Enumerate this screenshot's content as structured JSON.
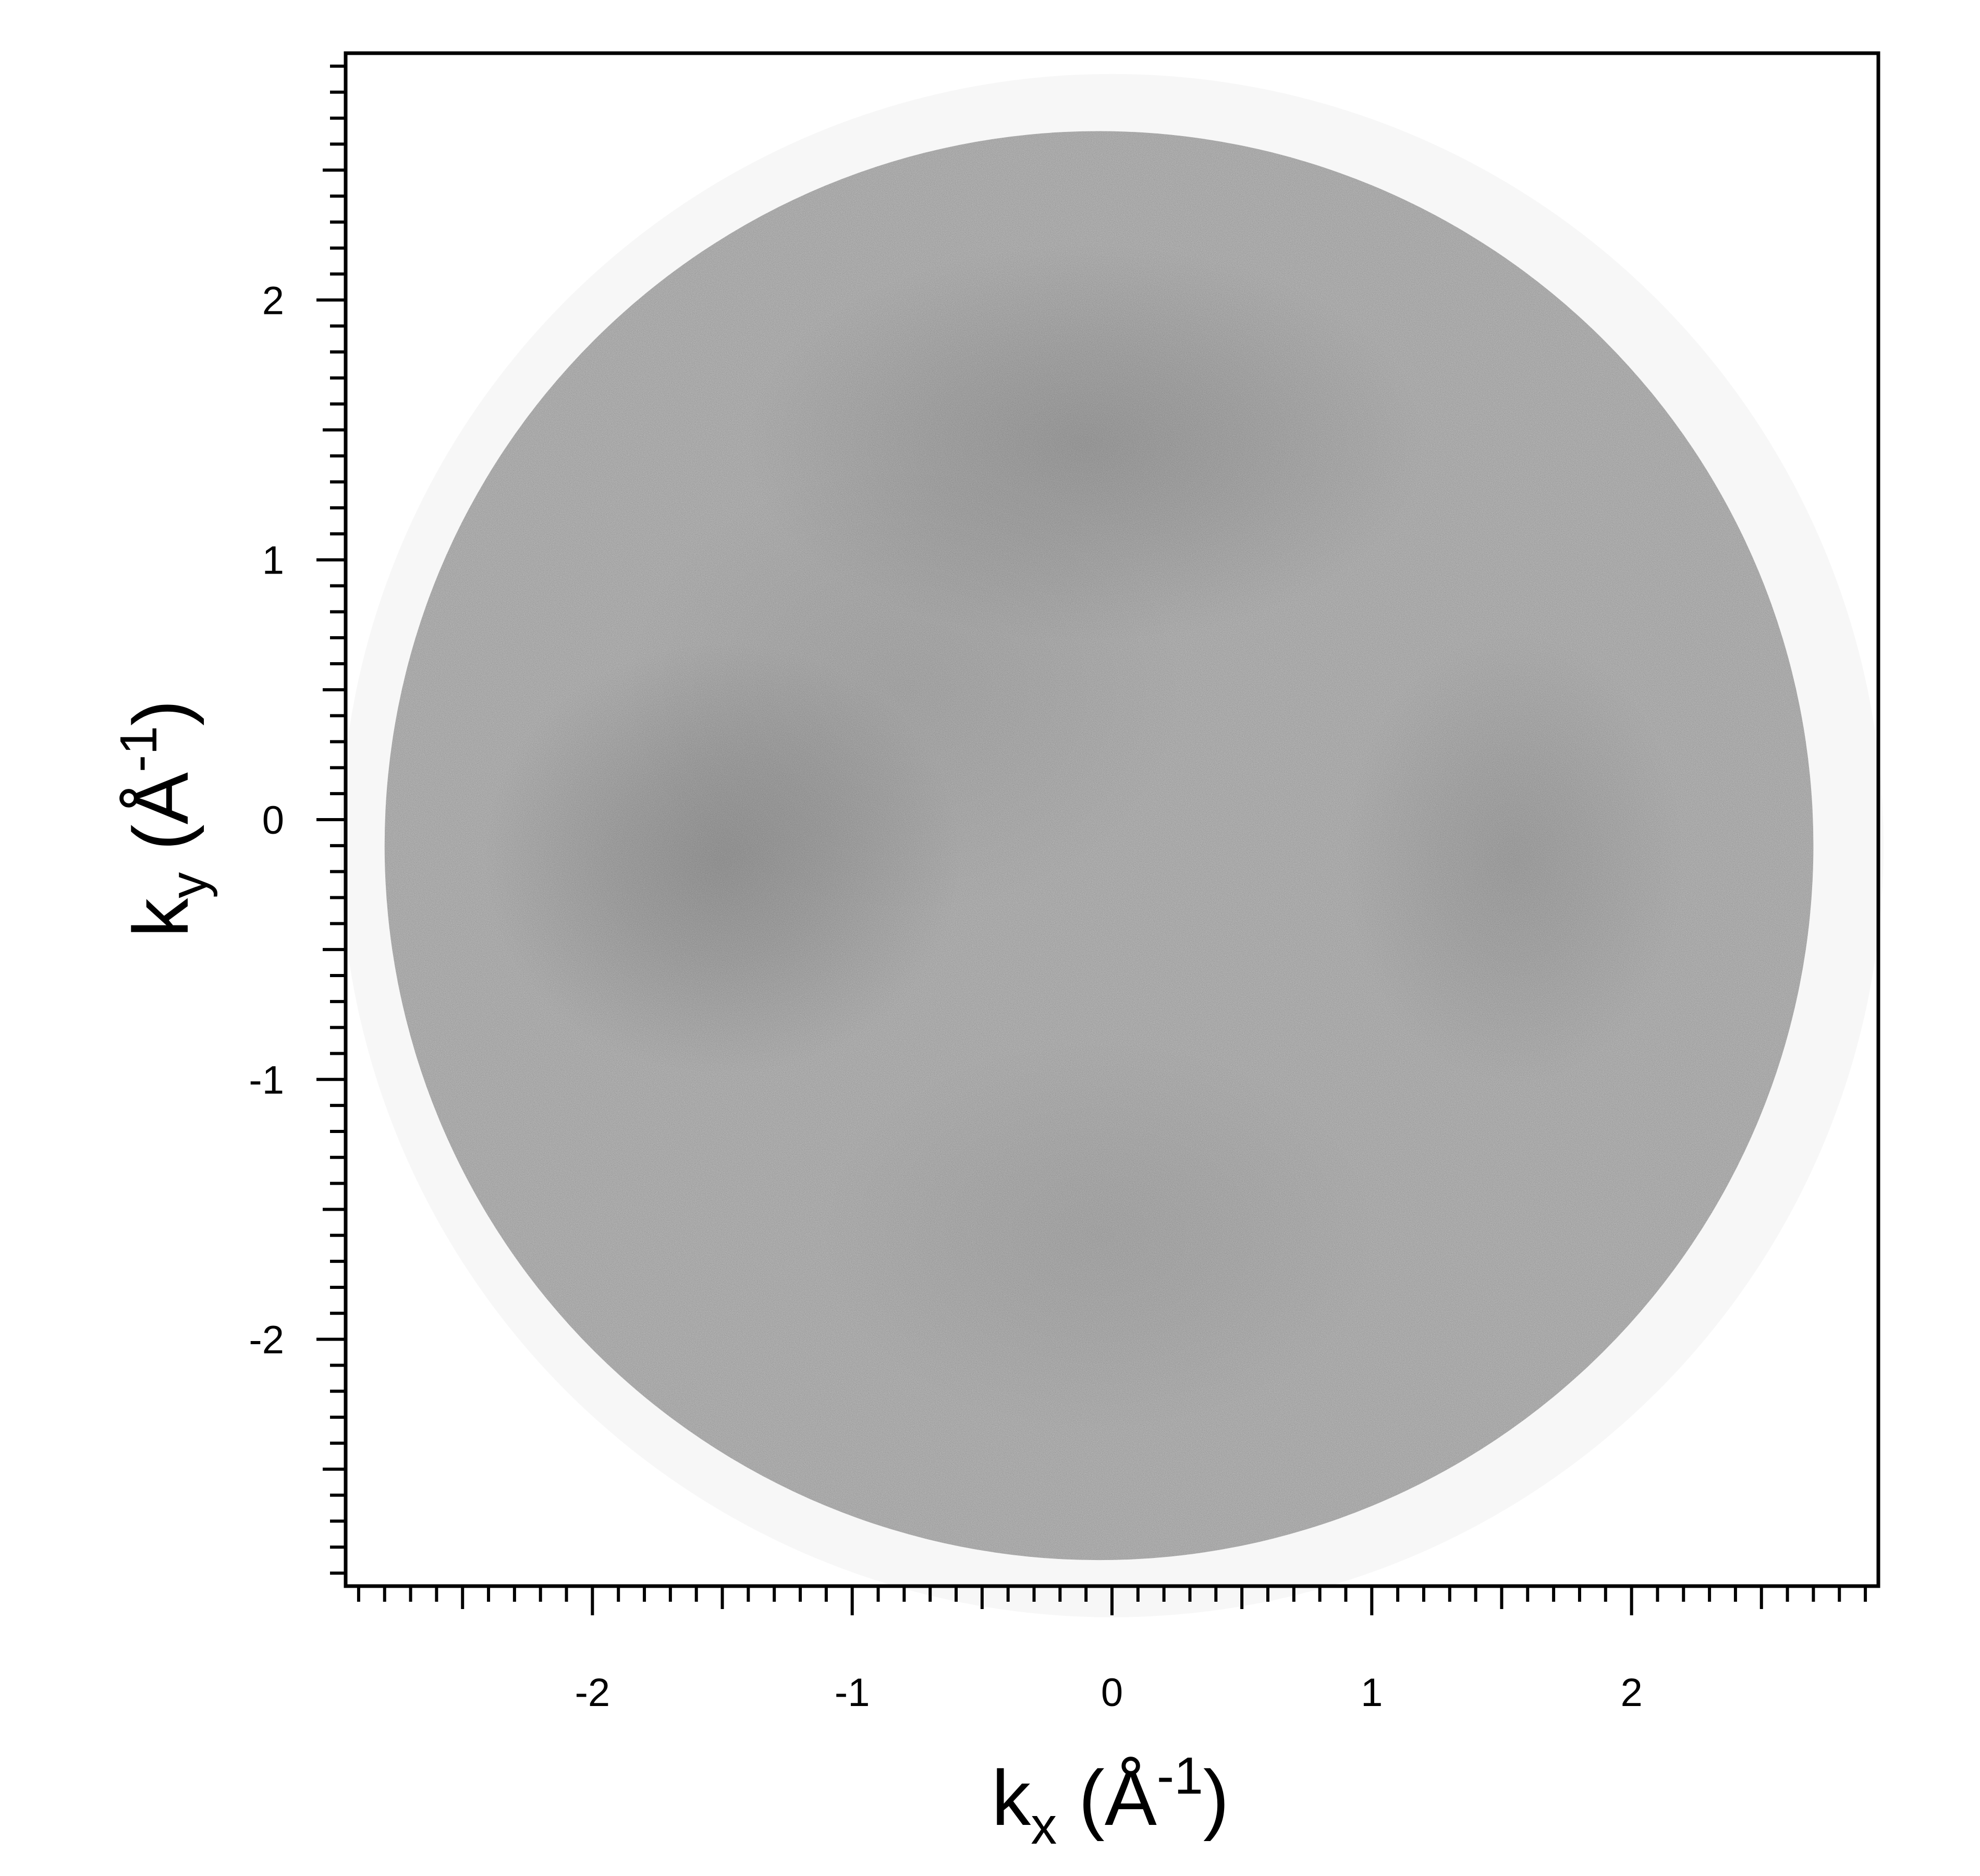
{
  "chart_data": {
    "type": "heatmap",
    "xlabel": {
      "base": "k",
      "sub": "x",
      "unit": "Å",
      "exp": "-1"
    },
    "ylabel": {
      "base": "k",
      "sub": "y",
      "unit": "Å",
      "exp": "-1"
    },
    "xlim": [
      -2.95,
      2.95
    ],
    "ylim": [
      -2.95,
      2.95
    ],
    "x_ticks": [
      -2,
      -1,
      0,
      1,
      2
    ],
    "y_ticks": [
      -2,
      -1,
      0,
      1,
      2
    ],
    "x_tick_labels": [
      "-2",
      "-1",
      "0",
      "1",
      "2"
    ],
    "y_tick_labels": [
      "-2",
      "-1",
      "0",
      "1",
      "2"
    ],
    "minor_tick_step": 0.1,
    "colormap": "grayscale (higher intensity = darker)",
    "background_color": "#ffffff",
    "frame_color": "#000000",
    "disk": {
      "center": [
        -0.05,
        -0.1
      ],
      "radius": 2.75,
      "base_intensity": 0.3
    },
    "halo": {
      "center": [
        0.0,
        -0.1
      ],
      "radius": 2.97,
      "intensity": 0.03
    },
    "features": [
      {
        "center": [
          -1.5,
          -0.15
        ],
        "sigma": [
          0.42,
          0.38
        ],
        "intensity": 0.15
      },
      {
        "center": [
          -0.1,
          1.45
        ],
        "sigma": [
          0.6,
          0.35
        ],
        "intensity": 0.12
      },
      {
        "center": [
          1.55,
          -0.15
        ],
        "sigma": [
          0.3,
          0.4
        ],
        "intensity": 0.09
      },
      {
        "center": [
          -0.05,
          -1.6
        ],
        "sigma": [
          0.5,
          0.35
        ],
        "intensity": 0.05
      },
      {
        "center": [
          -0.8,
          0.5
        ],
        "sigma": [
          0.5,
          0.4
        ],
        "intensity": 0.05
      }
    ]
  }
}
